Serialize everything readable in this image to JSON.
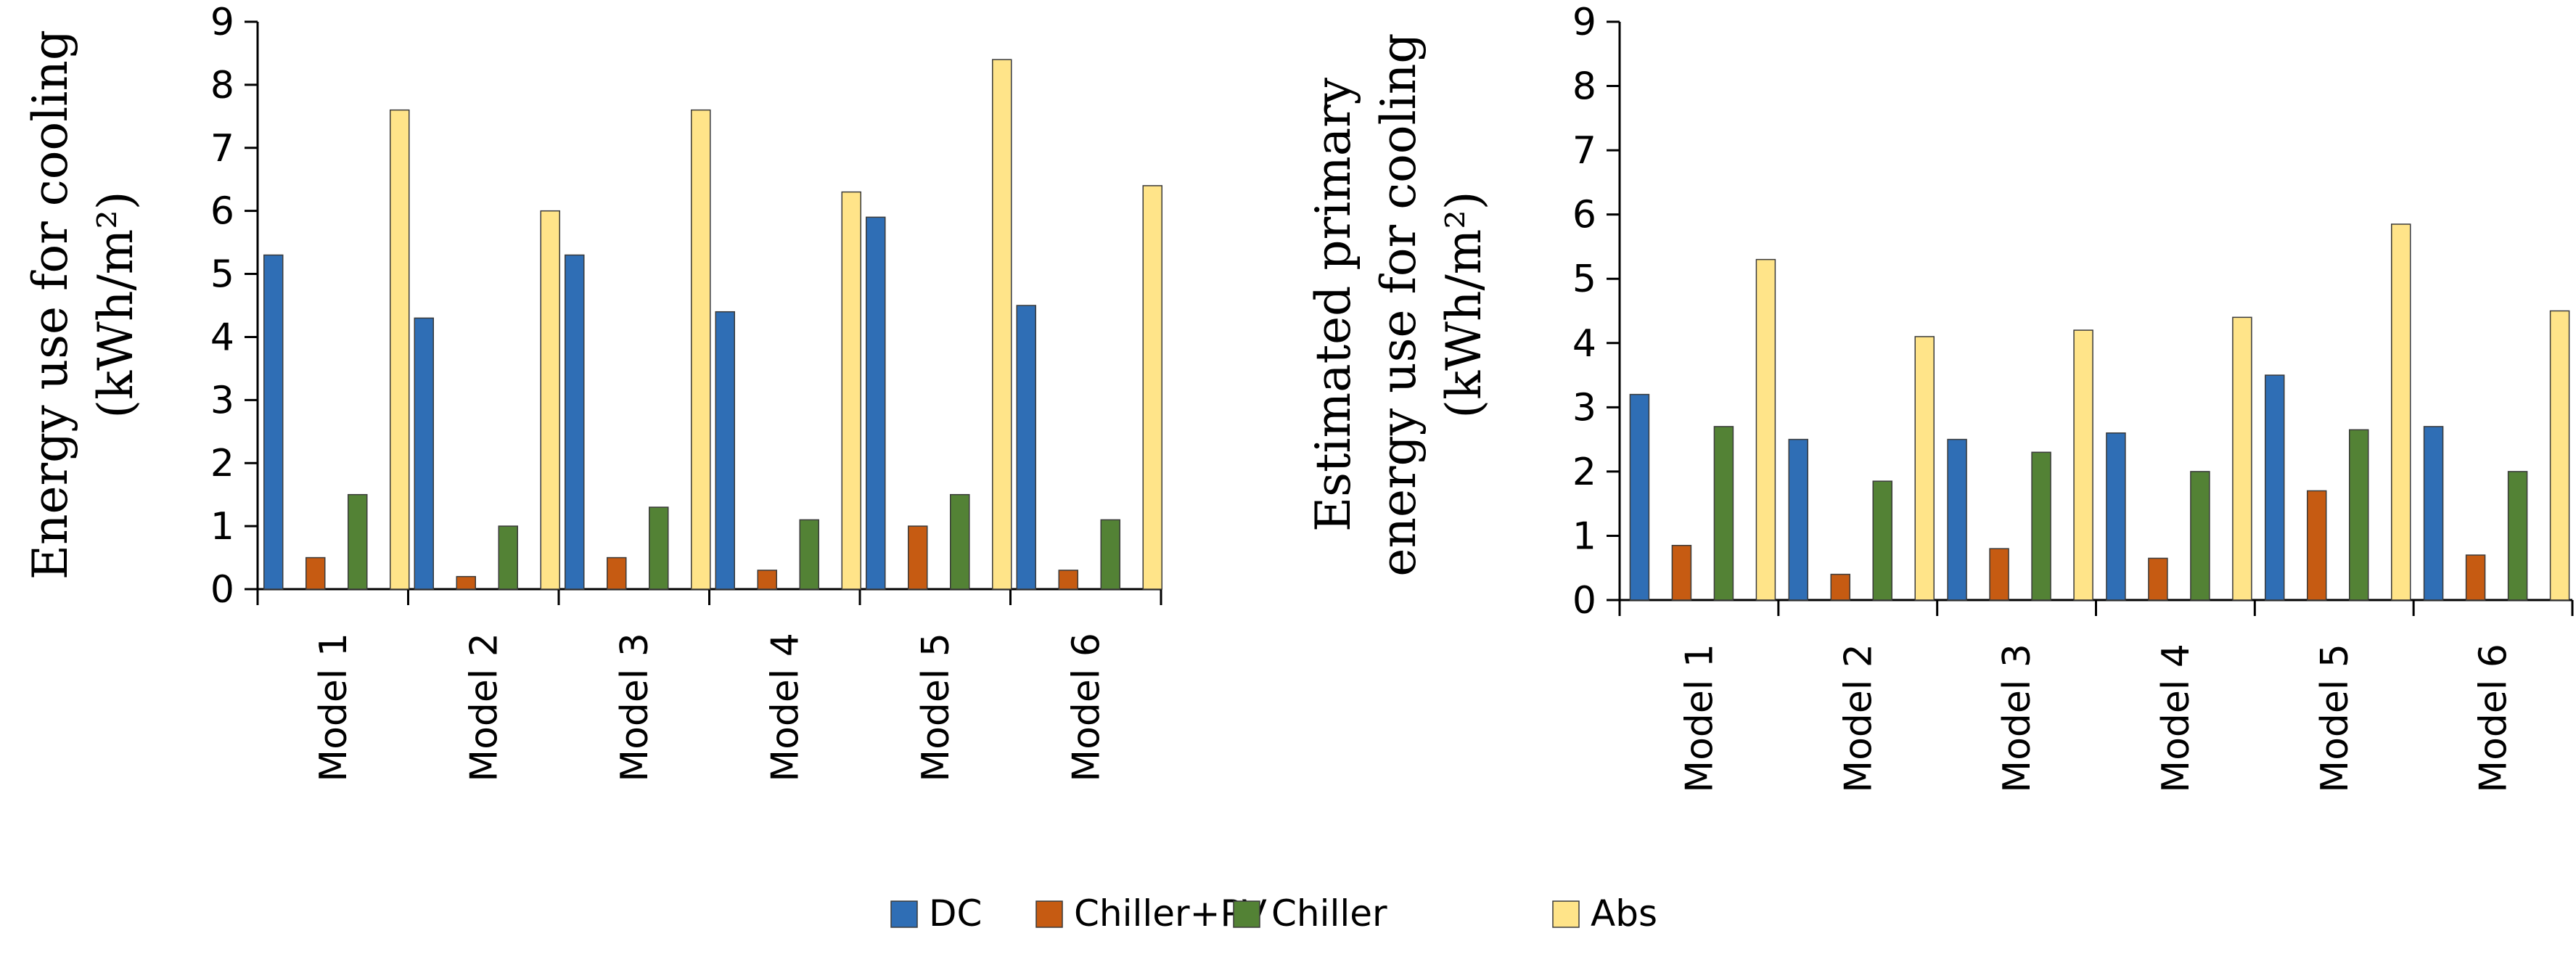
{
  "legend": [
    {
      "name": "DC",
      "color": "#2f6eb5"
    },
    {
      "name": "Chiller+PV",
      "color": "#c65b12"
    },
    {
      "name": "Chiller",
      "color": "#538235"
    },
    {
      "name": "Abs",
      "color": "#ffe489"
    }
  ],
  "chart_data": [
    {
      "type": "bar",
      "title": "",
      "ylabel": "Energy use for cooling (kWh/m²)",
      "ylabel_lines": [
        "Energy use for cooling",
        "(kWh/m²)"
      ],
      "xlabel": "",
      "ylim": [
        0,
        9
      ],
      "yticks": [
        "0",
        "1",
        "2",
        "3",
        "4",
        "5",
        "6",
        "7",
        "8",
        "9"
      ],
      "categories": [
        "Model 1",
        "Model 2",
        "Model 3",
        "Model 4",
        "Model 5",
        "Model 6"
      ],
      "series": [
        {
          "name": "DC",
          "values": [
            5.3,
            4.3,
            5.3,
            4.4,
            5.9,
            4.5
          ]
        },
        {
          "name": "Chiller+PV",
          "values": [
            0.5,
            0.2,
            0.5,
            0.3,
            1.0,
            0.3
          ]
        },
        {
          "name": "Chiller",
          "values": [
            1.5,
            1.0,
            1.3,
            1.1,
            1.5,
            1.1
          ]
        },
        {
          "name": "Abs",
          "values": [
            7.6,
            6.0,
            7.6,
            6.3,
            8.4,
            6.4
          ]
        }
      ]
    },
    {
      "type": "bar",
      "title": "",
      "ylabel": "Estimated primary energy use for cooling (kWh/m²)",
      "ylabel_lines": [
        "Estimated primary",
        "energy use  for cooling",
        "(kWh/m²)"
      ],
      "xlabel": "",
      "ylim": [
        0,
        9
      ],
      "yticks": [
        "0",
        "1",
        "2",
        "3",
        "4",
        "5",
        "6",
        "7",
        "8",
        "9"
      ],
      "categories": [
        "Model 1",
        "Model 2",
        "Model 3",
        "Model 4",
        "Model 5",
        "Model 6"
      ],
      "series": [
        {
          "name": "DC",
          "values": [
            3.2,
            2.5,
            2.5,
            2.6,
            3.5,
            2.7
          ]
        },
        {
          "name": "Chiller+PV",
          "values": [
            0.85,
            0.4,
            0.8,
            0.65,
            1.7,
            0.7
          ]
        },
        {
          "name": "Chiller",
          "values": [
            2.7,
            1.85,
            2.3,
            2.0,
            2.65,
            2.0
          ]
        },
        {
          "name": "Abs",
          "values": [
            5.3,
            4.1,
            4.2,
            4.4,
            5.85,
            4.5
          ]
        }
      ]
    }
  ]
}
